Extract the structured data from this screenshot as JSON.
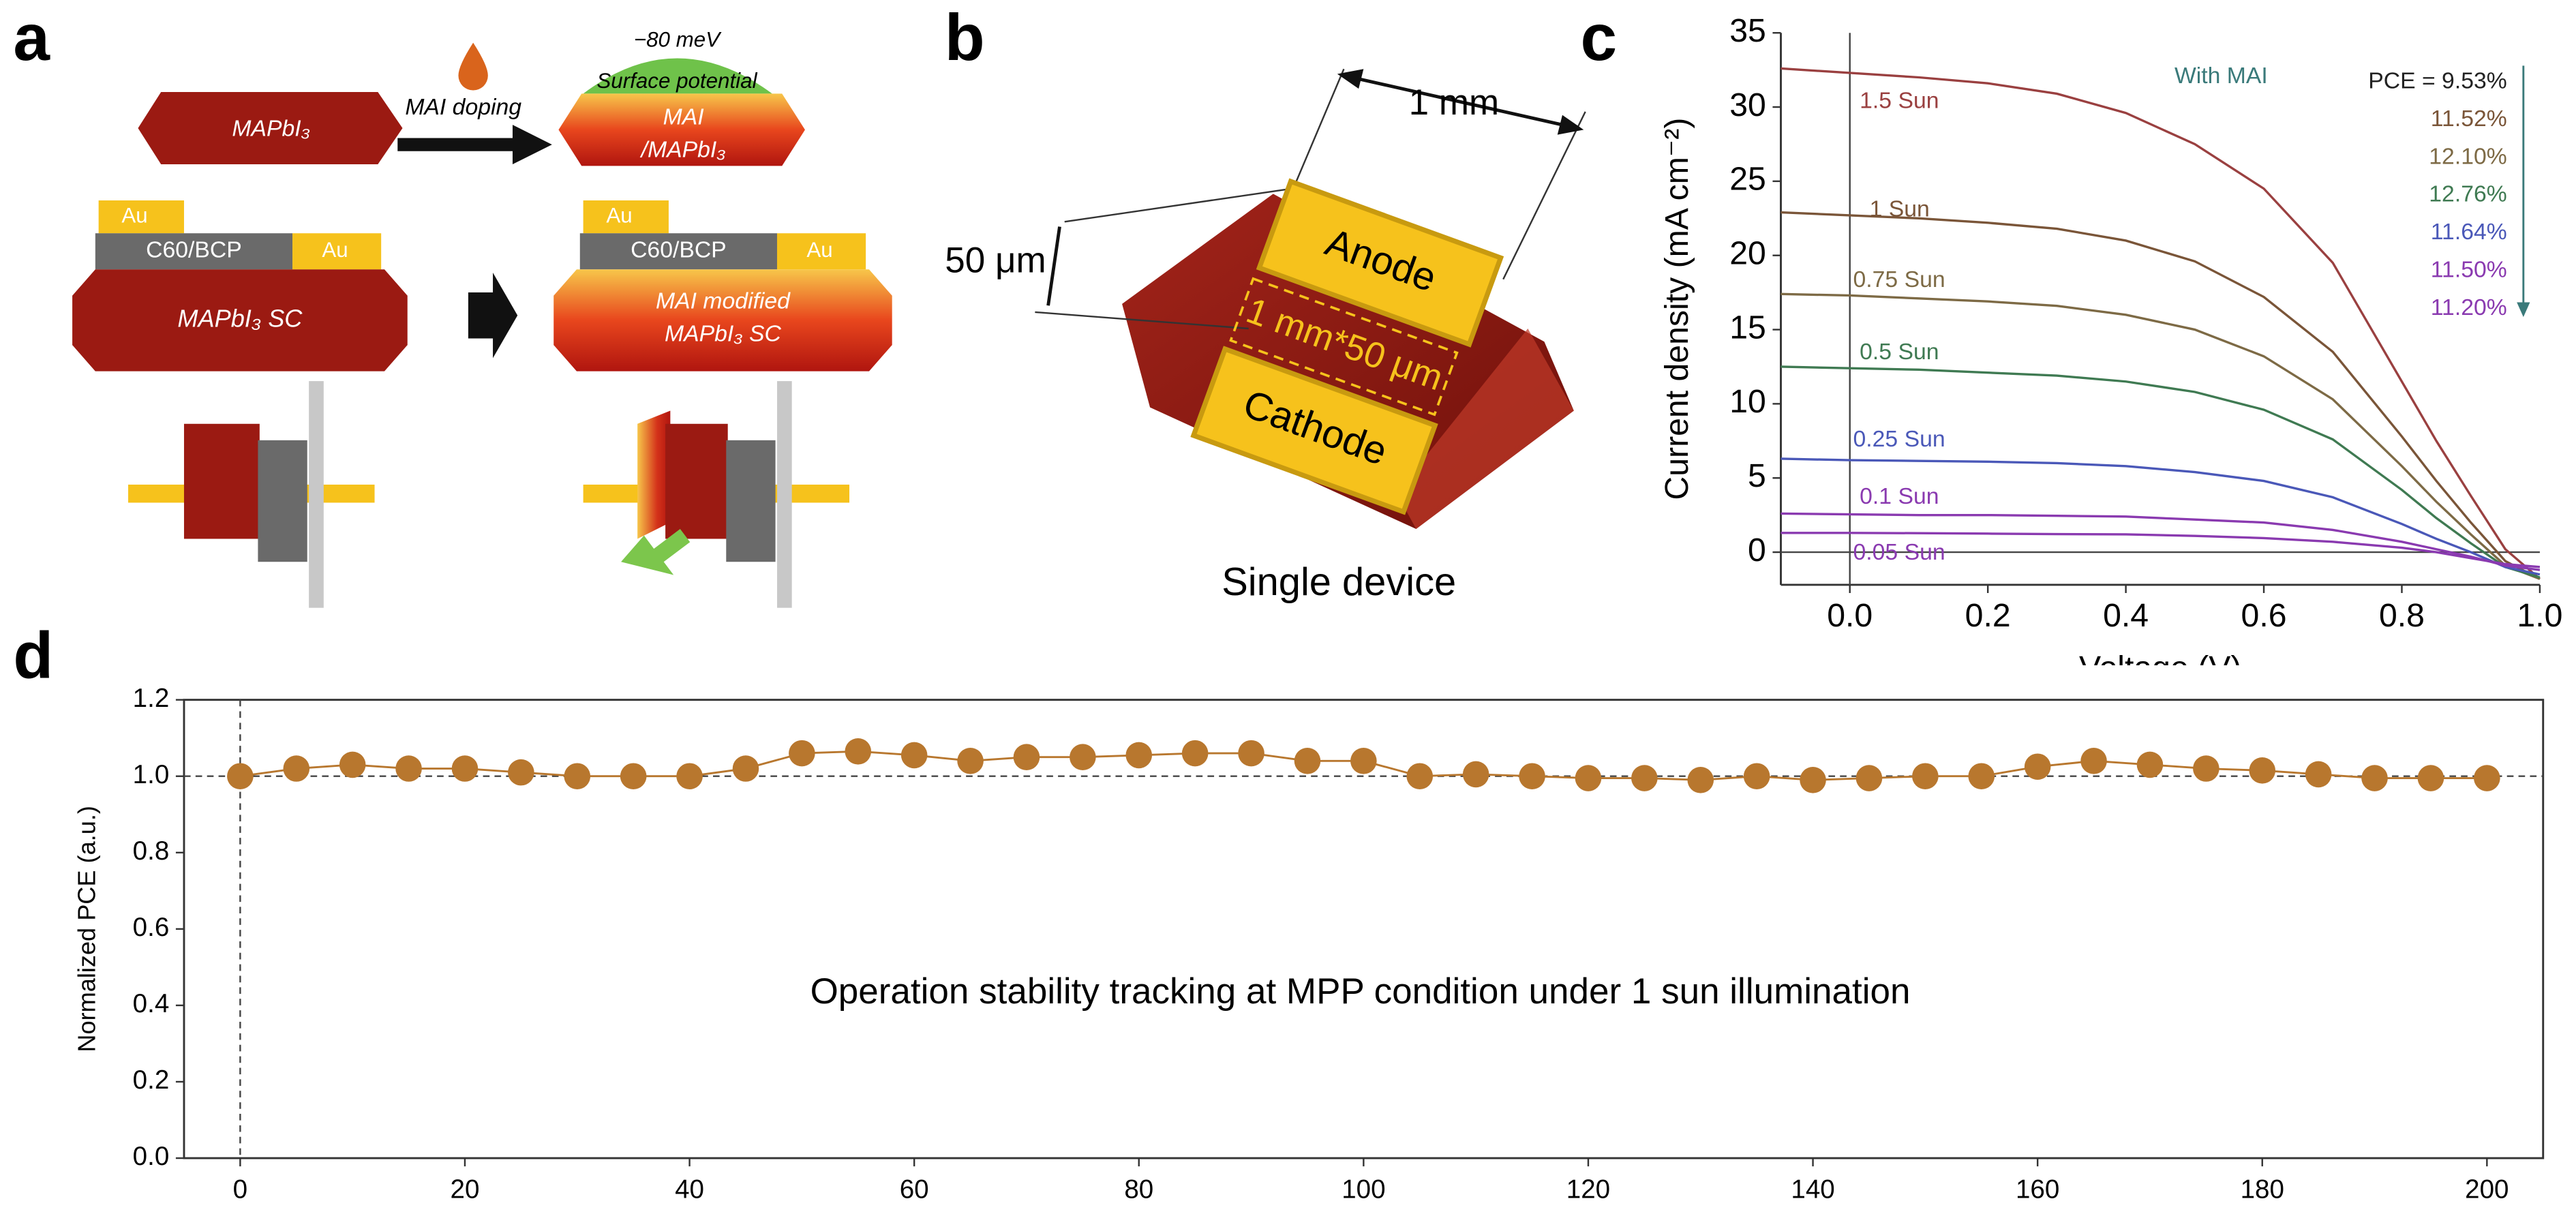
{
  "figure": {
    "panel_labels": [
      "a",
      "b",
      "c",
      "d"
    ]
  },
  "diagram_a": {
    "top_left": "MAPbI₃",
    "doping": "MAI doping",
    "potential_value": "−80 meV",
    "potential_label": "Surface potential",
    "top_right_1": "MAI",
    "top_right_2": "/MAPbI₃",
    "au": [
      "Au",
      "Au",
      "Au",
      "Au"
    ],
    "etl": [
      "C60/BCP",
      "C60/BCP"
    ],
    "sc_left": "MAPbI₃ SC",
    "sc_right_1": "MAI modified",
    "sc_right_2": "MAPbI₃ SC"
  },
  "diagram_b": {
    "width": "1 mm",
    "thickness": "50 μm",
    "anode": "Anode",
    "channel": "1 mm*50 μm",
    "cathode": "Cathode",
    "caption": "Single device"
  },
  "chart_data": [
    {
      "type": "line",
      "xlabel": "Voltage (V)",
      "ylabel": "Current density (mA cm⁻²)",
      "x": [
        -0.1,
        0,
        0.1,
        0.2,
        0.3,
        0.4,
        0.5,
        0.6,
        0.7,
        0.8,
        0.85,
        0.9,
        0.95,
        1.0
      ],
      "series": [
        {
          "name": "1.5 Sun",
          "color": "#9a4040",
          "values": [
            32.6,
            32.3,
            32.0,
            31.6,
            30.9,
            29.6,
            27.5,
            24.5,
            19.5,
            11.5,
            7.5,
            3.8,
            0.2,
            -1.8
          ]
        },
        {
          "name": "1 Sun",
          "color": "#7a5538",
          "values": [
            22.9,
            22.7,
            22.5,
            22.2,
            21.8,
            21.0,
            19.6,
            17.2,
            13.5,
            7.8,
            4.8,
            2.0,
            -0.6,
            -1.8
          ]
        },
        {
          "name": "0.75 Sun",
          "color": "#7d6a45",
          "values": [
            17.4,
            17.3,
            17.1,
            16.9,
            16.6,
            16.0,
            15.0,
            13.2,
            10.3,
            5.8,
            3.4,
            1.2,
            -0.9,
            -1.8
          ]
        },
        {
          "name": "0.5 Sun",
          "color": "#3f7a52",
          "values": [
            12.5,
            12.4,
            12.3,
            12.1,
            11.9,
            11.5,
            10.8,
            9.6,
            7.6,
            4.2,
            2.3,
            0.6,
            -1.0,
            -1.7
          ]
        },
        {
          "name": "0.25 Sun",
          "color": "#4a58b8",
          "values": [
            6.3,
            6.2,
            6.15,
            6.1,
            6.0,
            5.8,
            5.4,
            4.8,
            3.7,
            1.9,
            0.9,
            0.0,
            -1.0,
            -1.5
          ]
        },
        {
          "name": "0.1 Sun",
          "color": "#8a3ab0",
          "values": [
            2.6,
            2.55,
            2.5,
            2.5,
            2.45,
            2.4,
            2.2,
            2.0,
            1.5,
            0.7,
            0.2,
            -0.3,
            -0.9,
            -1.2
          ]
        },
        {
          "name": "0.05 Sun",
          "color": "#8a3ab0",
          "values": [
            1.3,
            1.3,
            1.28,
            1.25,
            1.22,
            1.2,
            1.1,
            0.95,
            0.7,
            0.3,
            0.0,
            -0.4,
            -0.8,
            -1.0
          ]
        }
      ],
      "xlim": [
        -0.1,
        1.0
      ],
      "ylim": [
        -2.2,
        35
      ],
      "xticks": [
        {
          "value": 0,
          "label": "0.0"
        },
        0.2,
        0.4,
        0.6,
        0.8,
        {
          "value": 1,
          "label": "1.0"
        }
      ],
      "yticks": [
        0,
        5,
        10,
        15,
        20,
        25,
        30,
        35
      ],
      "reference_x": 0,
      "reference_y": 0,
      "annotation": "With MAI",
      "annotation_color": "#3a7a7a",
      "pce_labels": [
        {
          "text": "PCE = 9.53%",
          "color": "#222222"
        },
        {
          "text": "11.52%",
          "color": "#7a5538"
        },
        {
          "text": "12.10%",
          "color": "#7d6a45"
        },
        {
          "text": "12.76%",
          "color": "#3f7a52"
        },
        {
          "text": "11.64%",
          "color": "#4a58b8"
        },
        {
          "text": "11.50%",
          "color": "#8a3ab0"
        },
        {
          "text": "11.20%",
          "color": "#8a3ab0"
        }
      ]
    },
    {
      "type": "line",
      "markers": true,
      "ylabel": "Normalized PCE (a.u.)",
      "color": "#b8772e",
      "annotation": "Operation stability tracking at MPP condition under 1 sun illumination",
      "x": [
        0,
        5,
        10,
        15,
        20,
        25,
        30,
        35,
        40,
        45,
        50,
        55,
        60,
        65,
        70,
        75,
        80,
        85,
        90,
        95,
        100,
        105,
        110,
        115,
        120,
        125,
        130,
        135,
        140,
        145,
        150,
        155,
        160,
        165,
        170,
        175,
        180,
        185,
        190,
        195,
        200
      ],
      "values": [
        1.0,
        1.02,
        1.03,
        1.02,
        1.02,
        1.01,
        1.0,
        1.0,
        1.0,
        1.02,
        1.06,
        1.065,
        1.055,
        1.04,
        1.05,
        1.05,
        1.055,
        1.06,
        1.06,
        1.04,
        1.04,
        1.0,
        1.005,
        1.0,
        0.995,
        0.995,
        0.99,
        1.0,
        0.99,
        0.995,
        1.0,
        1.0,
        1.025,
        1.04,
        1.03,
        1.02,
        1.015,
        1.005,
        0.995,
        0.995,
        0.995
      ],
      "xlim": [
        -5,
        205
      ],
      "ylim": [
        0,
        1.2
      ],
      "xticks": [
        0,
        20,
        40,
        60,
        80,
        100,
        120,
        140,
        160,
        180,
        200
      ],
      "yticks": [
        {
          "value": 0,
          "label": "0.0"
        },
        0.2,
        0.4,
        0.6,
        0.8,
        {
          "value": 1,
          "label": "1.0"
        },
        1.2
      ],
      "reference_x": 0,
      "reference_y": 1
    }
  ]
}
